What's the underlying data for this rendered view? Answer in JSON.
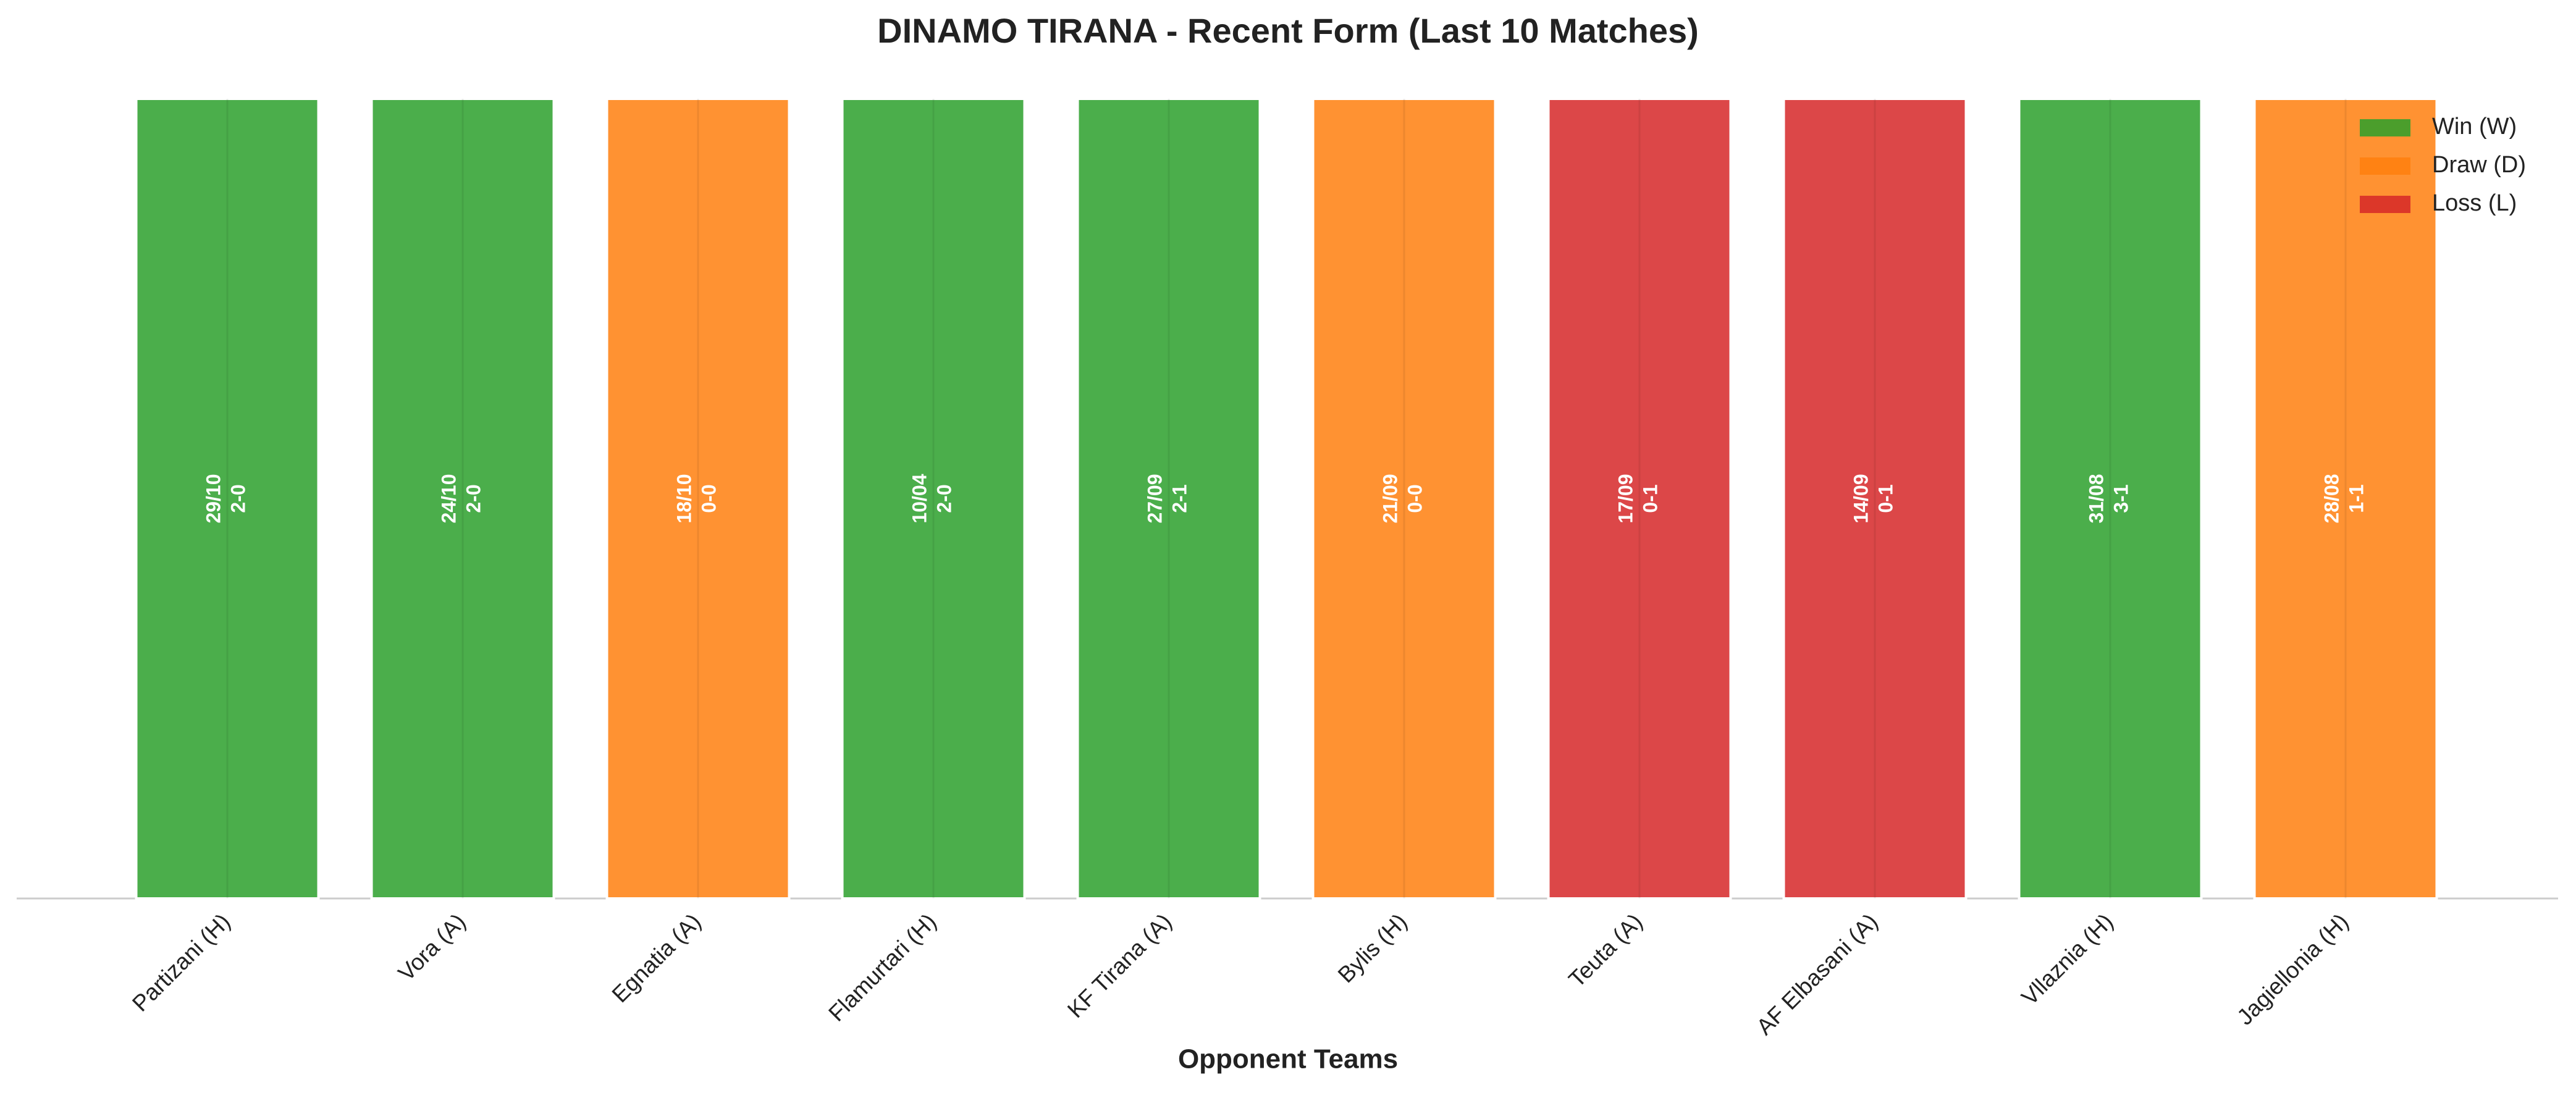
{
  "chart_data": {
    "type": "bar",
    "stacked": true,
    "title": "DINAMO TIRANA - Recent Form (Last 10 Matches)",
    "x_label": "Opponent Teams",
    "categories": [
      "Partizani (H)",
      "Vora (A)",
      "Egnatia (A)",
      "Flamurtari (H)",
      "KF Tirana (A)",
      "Bylis (H)",
      "Teuta (A)",
      "AF Elbasani (A)",
      "Vllaznia (H)",
      "Jagiellonia (H)"
    ],
    "dates": [
      "29/10",
      "24/10",
      "18/10",
      "10/04",
      "27/09",
      "21/09",
      "17/09",
      "14/09",
      "31/08",
      "28/08"
    ],
    "scores": [
      "2-0",
      "2-0",
      "0-0",
      "2-0",
      "2-1",
      "0-0",
      "0-1",
      "0-1",
      "3-1",
      "1-1"
    ],
    "series": [
      {
        "name": "Win (W)",
        "color": "#2ca02c",
        "values": [
          1,
          1,
          null,
          1,
          1,
          null,
          null,
          null,
          1,
          null
        ]
      },
      {
        "name": "Draw (D)",
        "color": "#ff7f0e",
        "values": [
          null,
          null,
          1,
          null,
          null,
          1,
          null,
          null,
          null,
          1
        ]
      },
      {
        "name": "Loss (L)",
        "color": "#d62728",
        "values": [
          null,
          null,
          null,
          null,
          null,
          null,
          1,
          1,
          null,
          null
        ]
      }
    ],
    "ylim": [
      0,
      1
    ],
    "legend": "upper right"
  }
}
